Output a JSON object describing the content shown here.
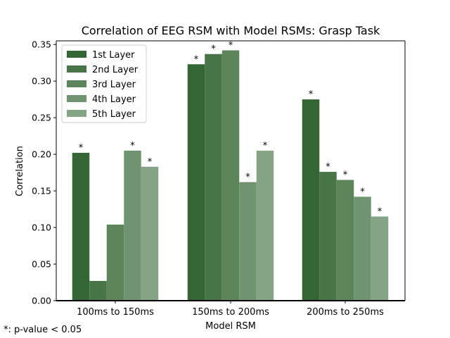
{
  "chart_data": {
    "type": "bar",
    "title": "Correlation of EEG RSM with Model RSMs: Grasp Task",
    "xlabel": "Model RSM",
    "ylabel": "Correlation",
    "categories": [
      "100ms to 150ms",
      "150ms to 200ms",
      "200ms to 250ms"
    ],
    "ylim": [
      0,
      0.355
    ],
    "yticks": [
      0.0,
      0.05,
      0.1,
      0.15,
      0.2,
      0.25,
      0.3,
      0.35
    ],
    "ytick_labels": [
      "0.00",
      "0.05",
      "0.10",
      "0.15",
      "0.20",
      "0.25",
      "0.30",
      "0.35"
    ],
    "grid": false,
    "legend_position": "top-left",
    "series": [
      {
        "name": "1st Layer",
        "color": "#336633",
        "values": [
          0.202,
          0.323,
          0.275
        ],
        "significant": [
          true,
          true,
          true
        ]
      },
      {
        "name": "2nd Layer",
        "color": "#477547",
        "values": [
          0.027,
          0.337,
          0.176
        ],
        "significant": [
          false,
          true,
          true
        ]
      },
      {
        "name": "3rd Layer",
        "color": "#5c855c",
        "values": [
          0.104,
          0.342,
          0.165
        ],
        "significant": [
          false,
          true,
          true
        ]
      },
      {
        "name": "4th Layer",
        "color": "#709470",
        "values": [
          0.205,
          0.162,
          0.142
        ],
        "significant": [
          true,
          true,
          true
        ]
      },
      {
        "name": "5th Layer",
        "color": "#85a385",
        "values": [
          0.183,
          0.205,
          0.115
        ],
        "significant": [
          true,
          true,
          true
        ]
      }
    ],
    "significance_marker": "*"
  },
  "footnote": "*: p-value < 0.05"
}
